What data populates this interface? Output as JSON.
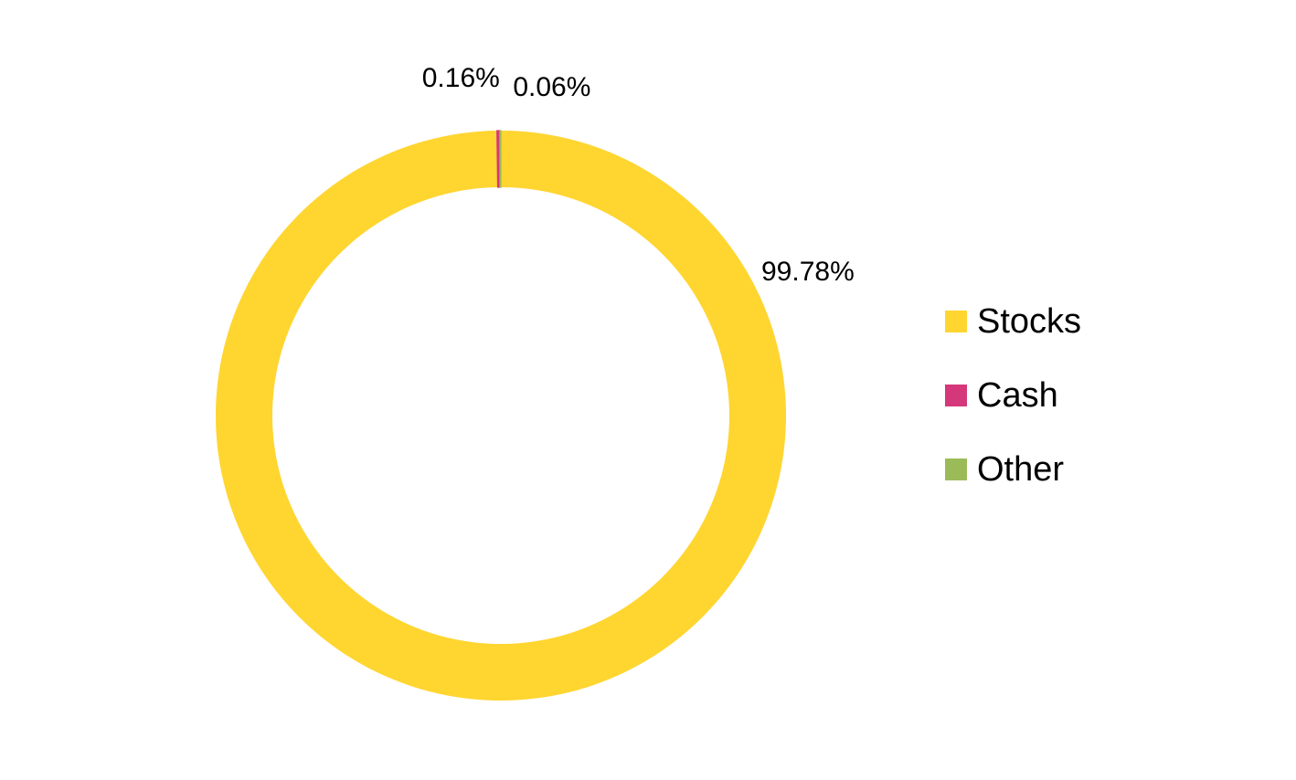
{
  "chart_data": {
    "type": "pie",
    "variant": "donut",
    "title": "",
    "slices": [
      {
        "label": "Stocks",
        "value": 99.78,
        "display": "99.78%",
        "color": "#FFD530"
      },
      {
        "label": "Cash",
        "value": 0.16,
        "display": "0.16%",
        "color": "#D5387A"
      },
      {
        "label": "Other",
        "value": 0.06,
        "display": "0.06%",
        "color": "#9BBB59"
      }
    ],
    "legend": {
      "placement": "right",
      "entries": [
        "Stocks",
        "Cash",
        "Other"
      ]
    }
  }
}
